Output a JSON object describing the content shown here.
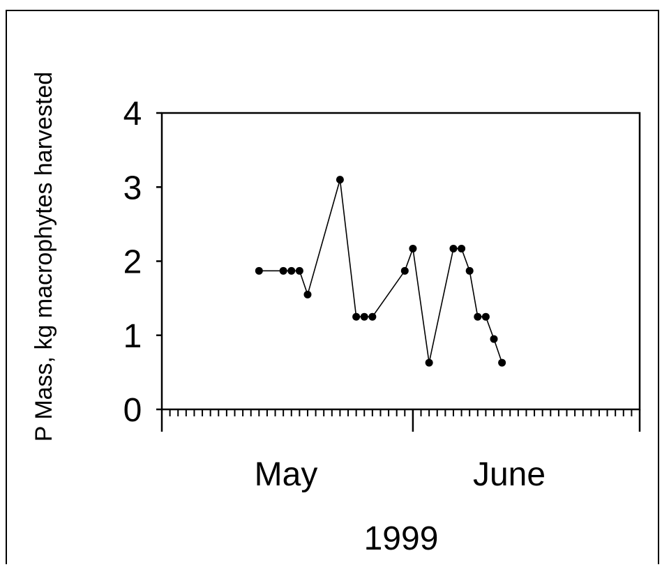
{
  "chart_data": {
    "type": "line",
    "title": "",
    "xlabel": "1999",
    "ylabel": "P Mass, kg macrophytes  harvested",
    "ylim": [
      0,
      4
    ],
    "yticks": [
      "0",
      "1",
      "2",
      "3",
      "4"
    ],
    "xlim": [
      "1999-04-18",
      "1999-06-16"
    ],
    "month_labels": [
      {
        "label": "May",
        "date": "1999-05-01"
      },
      {
        "label": "June",
        "date": "1999-06-01"
      }
    ],
    "grid": false,
    "legend": "none",
    "marker": "filled-circle",
    "series": [
      {
        "color": "#000000",
        "points": [
          {
            "x": "1999-04-30",
            "y": 1.87
          },
          {
            "x": "1999-05-03",
            "y": 1.87
          },
          {
            "x": "1999-05-04",
            "y": 1.87
          },
          {
            "x": "1999-05-05",
            "y": 1.87
          },
          {
            "x": "1999-05-06",
            "y": 1.55
          },
          {
            "x": "1999-05-10",
            "y": 3.1
          },
          {
            "x": "1999-05-12",
            "y": 1.25
          },
          {
            "x": "1999-05-13",
            "y": 1.25
          },
          {
            "x": "1999-05-14",
            "y": 1.25
          },
          {
            "x": "1999-05-18",
            "y": 1.87
          },
          {
            "x": "1999-05-19",
            "y": 2.17
          },
          {
            "x": "1999-05-21",
            "y": 0.63
          },
          {
            "x": "1999-05-24",
            "y": 2.17
          },
          {
            "x": "1999-05-25",
            "y": 2.17
          },
          {
            "x": "1999-05-26",
            "y": 1.87
          },
          {
            "x": "1999-05-27",
            "y": 1.25
          },
          {
            "x": "1999-05-28",
            "y": 1.25
          },
          {
            "x": "1999-05-29",
            "y": 0.95
          },
          {
            "x": "1999-05-30",
            "y": 0.63
          }
        ]
      }
    ]
  }
}
